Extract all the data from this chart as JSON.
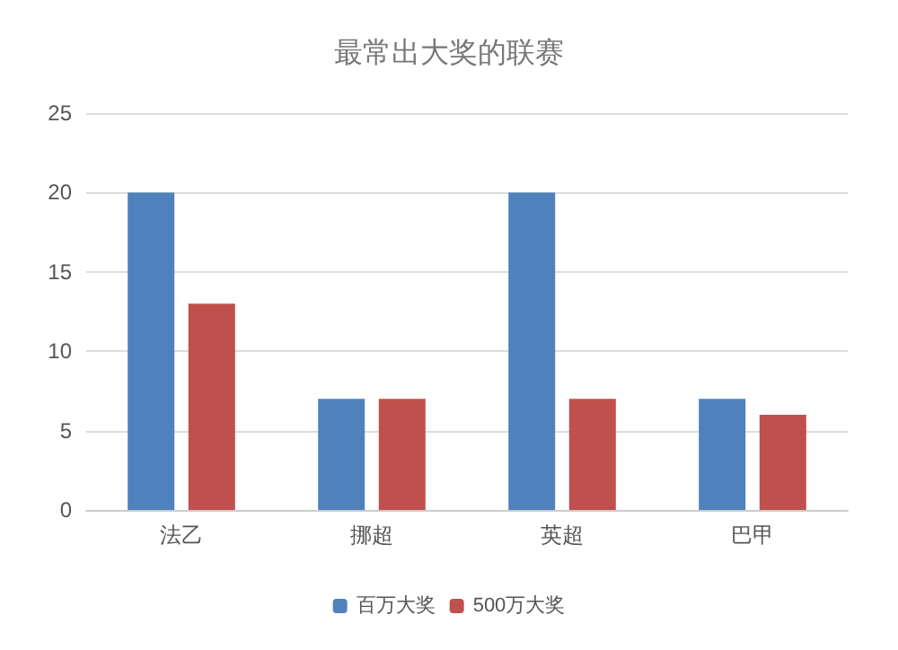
{
  "chart_data": {
    "type": "bar",
    "title": "最常出大奖的联赛",
    "categories": [
      "法乙",
      "挪超",
      "英超",
      "巴甲"
    ],
    "series": [
      {
        "name": "百万大奖",
        "color": "#4f81bd",
        "values": [
          20,
          7,
          20,
          7
        ]
      },
      {
        "name": "500万大奖",
        "color": "#c0504d",
        "values": [
          13,
          7,
          7,
          6
        ]
      }
    ],
    "ylim": [
      0,
      25
    ],
    "yticks": [
      0,
      5,
      10,
      15,
      20,
      25
    ],
    "grid": "y",
    "legend": "bottom"
  }
}
